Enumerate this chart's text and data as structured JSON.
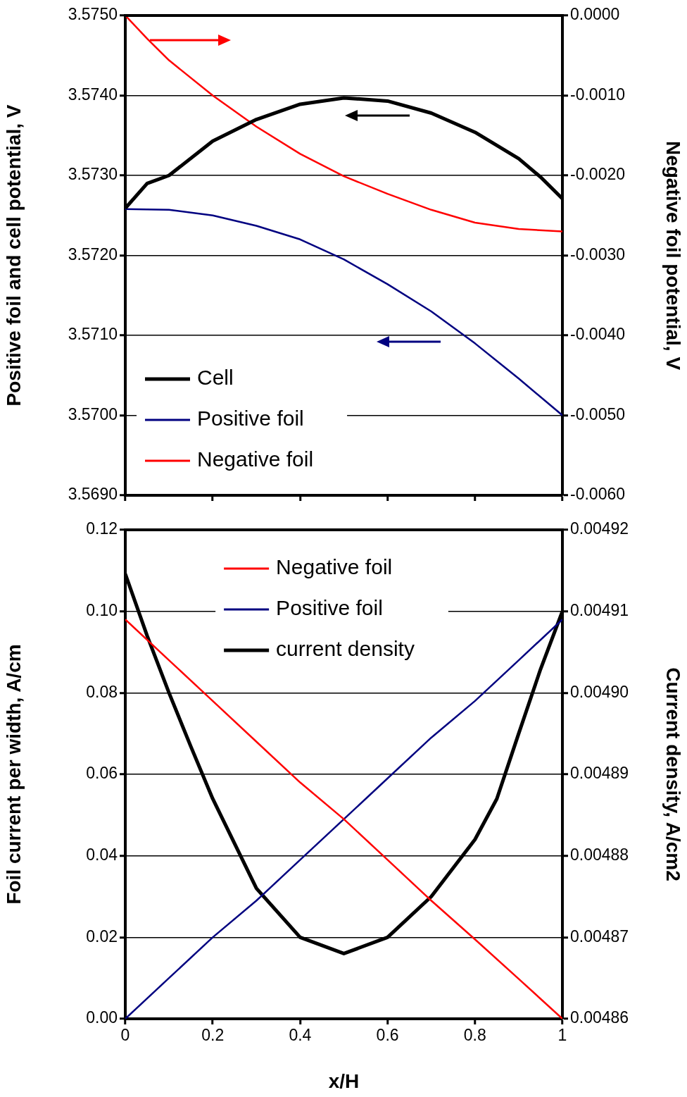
{
  "chart_data": [
    {
      "type": "line",
      "ylabel": "Positive foil and cell potential, V",
      "y2label": "Negative foil potential, V",
      "xlim": [
        0,
        1
      ],
      "xticks": [
        0,
        0.2,
        0.4,
        0.6,
        0.8,
        1
      ],
      "tick_labels": "y",
      "ylim": [
        3.569,
        3.575
      ],
      "yticks": [
        {
          "value": 3.569,
          "label": "3.5690"
        },
        {
          "value": 3.57,
          "label": "3.5700"
        },
        {
          "value": 3.571,
          "label": "3.5710"
        },
        {
          "value": 3.572,
          "label": "3.5720"
        },
        {
          "value": 3.573,
          "label": "3.5730"
        },
        {
          "value": 3.574,
          "label": "3.5740"
        },
        {
          "value": 3.575,
          "label": "3.5750"
        }
      ],
      "y2lim": [
        -0.006,
        0
      ],
      "y2ticks": [
        {
          "value": -0.006,
          "label": "-0.0060"
        },
        {
          "value": -0.005,
          "label": "-0.0050"
        },
        {
          "value": -0.004,
          "label": "-0.0040"
        },
        {
          "value": -0.003,
          "label": "-0.0030"
        },
        {
          "value": -0.002,
          "label": "-0.0020"
        },
        {
          "value": -0.001,
          "label": "-0.0010"
        },
        {
          "value": 0,
          "label": "0.0000"
        }
      ],
      "grid": "y",
      "legend": "bottom left",
      "marker": "none",
      "line_style": "solid",
      "series": [
        {
          "name": "Cell",
          "color": "#000000",
          "x": [
            0,
            0.05,
            0.1,
            0.2,
            0.3,
            0.4,
            0.5,
            0.6,
            0.7,
            0.8,
            0.9,
            0.95,
            1
          ],
          "values": [
            3.57259,
            3.5729,
            3.573,
            3.57343,
            3.5737,
            3.57389,
            3.57397,
            3.57393,
            3.57378,
            3.57354,
            3.57321,
            3.57298,
            3.57271
          ]
        },
        {
          "name": "Positive foil",
          "color": "#000080",
          "x": [
            0,
            0.1,
            0.2,
            0.3,
            0.4,
            0.5,
            0.6,
            0.7,
            0.8,
            0.9,
            1
          ],
          "values": [
            3.57258,
            3.57257,
            3.5725,
            3.57237,
            3.5722,
            3.57195,
            3.57164,
            3.5713,
            3.5709,
            3.57046,
            3.57
          ]
        },
        {
          "name": "Negative foil",
          "color": "#ff0000",
          "axis": "y2",
          "x": [
            0,
            0.05,
            0.1,
            0.2,
            0.3,
            0.4,
            0.5,
            0.6,
            0.7,
            0.8,
            0.9,
            1
          ],
          "values": [
            0,
            -0.00029,
            -0.00056,
            -0.001,
            -0.00139,
            -0.00173,
            -0.00201,
            -0.00223,
            -0.00243,
            -0.00259,
            -0.00267,
            -0.0027
          ]
        }
      ]
    },
    {
      "type": "line",
      "xlabel": "x/H",
      "ylabel": "Foil current per width, A/cm",
      "y2label": "Current density, A/cm2",
      "xlim": [
        0,
        1
      ],
      "xticks": [
        0,
        0.2,
        0.4,
        0.6,
        0.8,
        1
      ],
      "ylim": [
        0,
        0.12
      ],
      "yticks": [
        {
          "value": 0,
          "label": "0.00"
        },
        {
          "value": 0.02,
          "label": "0.02"
        },
        {
          "value": 0.04,
          "label": "0.04"
        },
        {
          "value": 0.06,
          "label": "0.06"
        },
        {
          "value": 0.08,
          "label": "0.08"
        },
        {
          "value": 0.1,
          "label": "0.10"
        },
        {
          "value": 0.12,
          "label": "0.12"
        }
      ],
      "y2lim": [
        0.00486,
        0.00492
      ],
      "y2ticks": [
        0.00486,
        0.00487,
        0.00488,
        0.00489,
        {
          "value": 0.0049,
          "label": "0.00490"
        },
        0.00491,
        0.00492
      ],
      "grid": "y",
      "legend": "top",
      "marker": "none",
      "line_style": "solid",
      "series": [
        {
          "name": "Negative foil",
          "color": "#ff0000",
          "x": [
            0,
            0.1,
            0.2,
            0.3,
            0.4,
            0.5,
            0.6,
            0.7,
            0.8,
            0.9,
            1
          ],
          "values": [
            0.098,
            0.088,
            0.078,
            0.068,
            0.058,
            0.049,
            0.039,
            0.029,
            0.0195,
            0.0098,
            0
          ]
        },
        {
          "name": "Positive foil",
          "color": "#000080",
          "x": [
            0,
            0.1,
            0.2,
            0.3,
            0.4,
            0.5,
            0.6,
            0.7,
            0.8,
            0.9,
            1
          ],
          "values": [
            0,
            0.01,
            0.02,
            0.029,
            0.039,
            0.049,
            0.059,
            0.069,
            0.078,
            0.088,
            0.098
          ]
        },
        {
          "name": "current density",
          "color": "#000000",
          "axis": "y2",
          "x": [
            0,
            0.05,
            0.1,
            0.15,
            0.2,
            0.3,
            0.4,
            0.5,
            0.6,
            0.7,
            0.8,
            0.85,
            0.9,
            0.95,
            1
          ],
          "values": [
            0.0049146,
            0.004907,
            0.0049,
            0.0048934,
            0.004887,
            0.004876,
            0.00487,
            0.004868,
            0.00487,
            0.004875,
            0.004882,
            0.004887,
            0.004895,
            0.0049029,
            0.00491
          ]
        }
      ]
    }
  ]
}
